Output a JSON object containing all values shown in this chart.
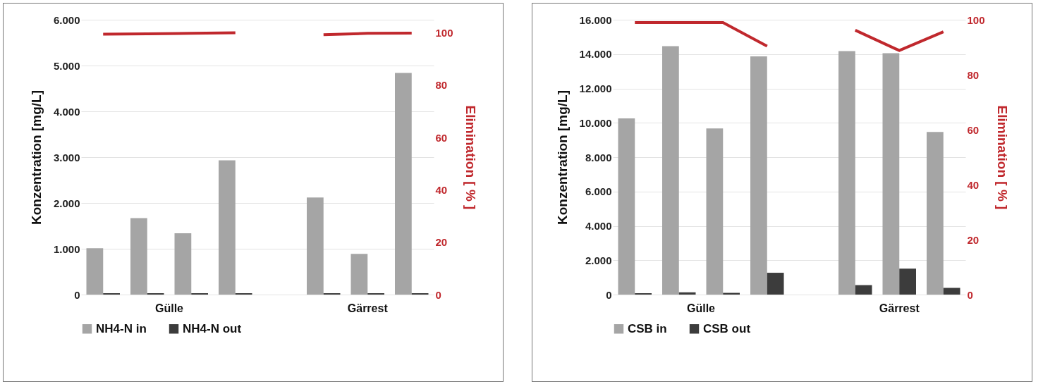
{
  "chart_data": [
    {
      "type": "bar",
      "categories": [
        null,
        null,
        null,
        null,
        null,
        null,
        null,
        null
      ],
      "series": [
        {
          "name": "NH4-N in",
          "color": "#a5a5a5",
          "values": [
            1010,
            1670,
            1340,
            2930,
            null,
            2120,
            890,
            4840
          ]
        },
        {
          "name": "NH4-N out",
          "color": "#3c3c3c",
          "values": [
            30,
            30,
            30,
            30,
            null,
            30,
            30,
            30
          ]
        },
        {
          "type": "line",
          "axis": "y2",
          "color": "#c0282d",
          "values": [
            99.5,
            99.6,
            99.8,
            100,
            null,
            99.3,
            99.8,
            99.9
          ]
        }
      ],
      "ylabel": "Konzentration  [mg/L]",
      "y2label": "Elimination  [ % ]",
      "ylim": [
        0,
        6000
      ],
      "yticks": [
        {
          "value": 0,
          "label": "0"
        },
        {
          "value": 1000,
          "label": "1.000"
        },
        {
          "value": 2000,
          "label": "2.000"
        },
        {
          "value": 3000,
          "label": "3.000"
        },
        {
          "value": 4000,
          "label": "4.000"
        },
        {
          "value": 5000,
          "label": "5.000"
        },
        {
          "value": 6000,
          "label": "6.000"
        }
      ],
      "y2lim": [
        0,
        105
      ],
      "y2ticks": [
        0,
        20,
        40,
        60,
        80,
        100
      ],
      "grid": "y",
      "legend": "bottom",
      "annotations": [
        "Gülle",
        "Gärrest"
      ]
    },
    {
      "type": "bar",
      "categories": [
        null,
        null,
        null,
        null,
        null,
        null,
        null,
        null
      ],
      "series": [
        {
          "name": "CSB in",
          "color": "#a5a5a5",
          "values": [
            10260,
            14460,
            9670,
            13870,
            null,
            14170,
            14050,
            9470
          ]
        },
        {
          "name": "CSB out",
          "color": "#3c3c3c",
          "values": [
            80,
            130,
            100,
            1270,
            null,
            550,
            1510,
            390
          ]
        },
        {
          "type": "line",
          "axis": "y2",
          "color": "#c0282d",
          "values": [
            99,
            99,
            99,
            90.4,
            null,
            96.2,
            88.8,
            95.6
          ]
        }
      ],
      "ylabel": "Konzentration  [mg/L]",
      "y2label": "Elimination  [ % ]",
      "ylim": [
        0,
        16000
      ],
      "yticks": [
        {
          "value": 0,
          "label": "0"
        },
        {
          "value": 2000,
          "label": "2.000"
        },
        {
          "value": 4000,
          "label": "4.000"
        },
        {
          "value": 6000,
          "label": "6.000"
        },
        {
          "value": 8000,
          "label": "8.000"
        },
        {
          "value": 10000,
          "label": "10.000"
        },
        {
          "value": 12000,
          "label": "12.000"
        },
        {
          "value": 14000,
          "label": "14.000"
        },
        {
          "value": 16000,
          "label": "16.000"
        }
      ],
      "y2lim": [
        0,
        100
      ],
      "y2ticks": [
        0,
        20,
        40,
        60,
        80,
        100
      ],
      "grid": "y",
      "legend": "bottom",
      "annotations": [
        "Gülle",
        "Gärrest"
      ]
    }
  ]
}
